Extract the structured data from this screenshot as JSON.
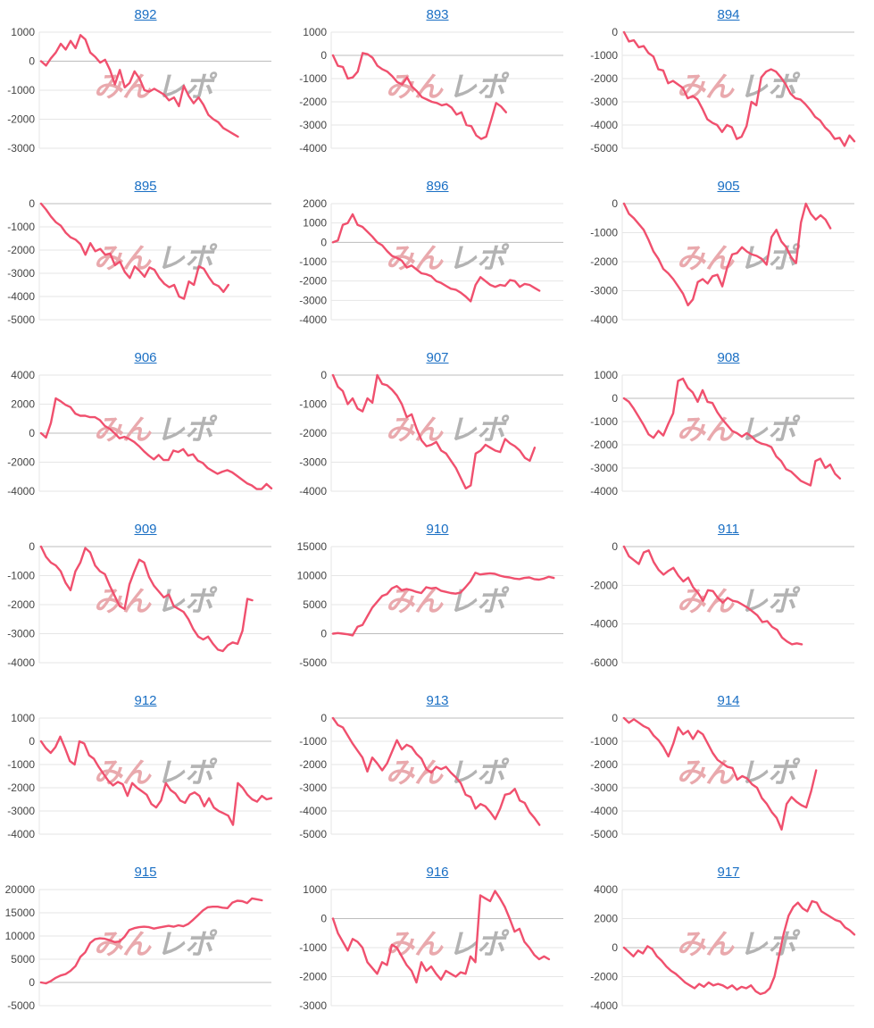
{
  "colors": {
    "line": "#f0506e",
    "grid": "#e6e6e6",
    "zero": "#bdbdbd",
    "title": "#1a6fc4",
    "watermark_a": "#e9a9ad",
    "watermark_b": "#b3b3b3"
  },
  "watermark": {
    "part_a": "みん",
    "part_b": "レポ"
  },
  "chart_data": [
    {
      "type": "line",
      "title": "892",
      "ylim": [
        -3000,
        1000
      ],
      "yticks": [
        1000,
        0,
        -1000,
        -2000,
        -3000
      ],
      "values": [
        0,
        -150,
        100,
        300,
        600,
        400,
        700,
        450,
        900,
        750,
        300,
        150,
        -50,
        50,
        -300,
        -800,
        -300,
        -900,
        -750,
        -350,
        -600,
        -1000,
        -1050,
        -950,
        -1050,
        -1150,
        -1350,
        -1250,
        -1550,
        -850,
        -1200,
        -1450,
        -1250,
        -1500,
        -1850,
        -2000,
        -2100,
        -2300,
        -2400,
        -2500,
        -2600
      ]
    },
    {
      "type": "line",
      "title": "893",
      "ylim": [
        -4000,
        1000
      ],
      "yticks": [
        1000,
        0,
        -1000,
        -2000,
        -3000,
        -4000
      ],
      "values": [
        0,
        -450,
        -500,
        -1000,
        -950,
        -700,
        100,
        50,
        -100,
        -450,
        -600,
        -700,
        -900,
        -1150,
        -1250,
        -950,
        -1350,
        -1550,
        -1800,
        -1900,
        -2000,
        -2050,
        -2150,
        -2100,
        -2250,
        -2550,
        -2450,
        -3000,
        -3050,
        -3450,
        -3600,
        -3500,
        -2800,
        -2050,
        -2200,
        -2450
      ]
    },
    {
      "type": "line",
      "title": "894",
      "ylim": [
        -5000,
        0
      ],
      "yticks": [
        0,
        -1000,
        -2000,
        -3000,
        -4000,
        -5000
      ],
      "values": [
        0,
        -400,
        -350,
        -650,
        -600,
        -900,
        -1050,
        -1600,
        -1650,
        -2200,
        -2100,
        -2250,
        -2400,
        -2850,
        -2750,
        -2900,
        -3300,
        -3750,
        -3900,
        -4000,
        -4300,
        -4000,
        -4100,
        -4600,
        -4500,
        -4050,
        -3000,
        -3150,
        -1950,
        -1700,
        -1600,
        -1700,
        -1950,
        -2250,
        -2650,
        -2850,
        -2900,
        -3100,
        -3350,
        -3650,
        -3800,
        -4100,
        -4300,
        -4600,
        -4550,
        -4900,
        -4450,
        -4700
      ]
    },
    {
      "type": "line",
      "title": "895",
      "ylim": [
        -5000,
        0
      ],
      "yticks": [
        0,
        -1000,
        -2000,
        -3000,
        -4000,
        -5000
      ],
      "values": [
        0,
        -250,
        -550,
        -800,
        -950,
        -1250,
        -1450,
        -1550,
        -1750,
        -2200,
        -1700,
        -2050,
        -1950,
        -2200,
        -2150,
        -2650,
        -2500,
        -2950,
        -3200,
        -2700,
        -2900,
        -3150,
        -2750,
        -2850,
        -3200,
        -3450,
        -3600,
        -3500,
        -4000,
        -4100,
        -3350,
        -3500,
        -2700,
        -2800,
        -3150,
        -3450,
        -3550,
        -3800,
        -3500
      ]
    },
    {
      "type": "line",
      "title": "896",
      "ylim": [
        -4000,
        2000
      ],
      "yticks": [
        2000,
        1000,
        0,
        -1000,
        -2000,
        -3000,
        -4000
      ],
      "values": [
        0,
        100,
        900,
        1000,
        1450,
        900,
        800,
        550,
        300,
        0,
        -150,
        -450,
        -700,
        -800,
        -950,
        -1300,
        -1200,
        -1400,
        -1600,
        -1650,
        -1750,
        -2000,
        -2100,
        -2250,
        -2400,
        -2450,
        -2600,
        -2800,
        -3050,
        -2200,
        -1800,
        -2000,
        -2200,
        -2300,
        -2200,
        -2250,
        -1950,
        -2000,
        -2300,
        -2150,
        -2200,
        -2350,
        -2500
      ]
    },
    {
      "type": "line",
      "title": "905",
      "ylim": [
        -4000,
        0
      ],
      "yticks": [
        0,
        -1000,
        -2000,
        -3000,
        -4000
      ],
      "values": [
        0,
        -350,
        -500,
        -700,
        -900,
        -1250,
        -1650,
        -1900,
        -2250,
        -2400,
        -2600,
        -2850,
        -3100,
        -3500,
        -3300,
        -2700,
        -2600,
        -2750,
        -2500,
        -2450,
        -2850,
        -2200,
        -1750,
        -1700,
        -1500,
        -1650,
        -1750,
        -1800,
        -1900,
        -2100,
        -1150,
        -900,
        -1300,
        -1500,
        -1850,
        -2050,
        -650,
        0,
        -350,
        -550,
        -400,
        -550,
        -850
      ]
    },
    {
      "type": "line",
      "title": "906",
      "ylim": [
        -4000,
        4000
      ],
      "yticks": [
        4000,
        2000,
        0,
        -2000,
        -4000
      ],
      "values": [
        0,
        -300,
        700,
        2400,
        2200,
        1950,
        1800,
        1350,
        1200,
        1200,
        1100,
        1100,
        900,
        500,
        300,
        0,
        -350,
        -250,
        -400,
        -600,
        -900,
        -1250,
        -1550,
        -1800,
        -1500,
        -1850,
        -1850,
        -1200,
        -1300,
        -1100,
        -1550,
        -1450,
        -1900,
        -2050,
        -2400,
        -2600,
        -2800,
        -2650,
        -2550,
        -2700,
        -2950,
        -3200,
        -3450,
        -3600,
        -3850,
        -3850,
        -3500,
        -3800
      ]
    },
    {
      "type": "line",
      "title": "907",
      "ylim": [
        -4000,
        0
      ],
      "yticks": [
        0,
        -1000,
        -2000,
        -3000,
        -4000
      ],
      "values": [
        0,
        -400,
        -550,
        -1000,
        -800,
        -1150,
        -1250,
        -800,
        -950,
        0,
        -300,
        -350,
        -500,
        -700,
        -1000,
        -1450,
        -1350,
        -1850,
        -2250,
        -2450,
        -2400,
        -2300,
        -2600,
        -2700,
        -2950,
        -3200,
        -3550,
        -3900,
        -3800,
        -2700,
        -2600,
        -2400,
        -2500,
        -2600,
        -2650,
        -2200,
        -2350,
        -2450,
        -2600,
        -2850,
        -2950,
        -2500
      ]
    },
    {
      "type": "line",
      "title": "908",
      "ylim": [
        -4000,
        1000
      ],
      "yticks": [
        1000,
        0,
        -1000,
        -2000,
        -3000,
        -4000
      ],
      "values": [
        0,
        -150,
        -450,
        -800,
        -1150,
        -1550,
        -1700,
        -1400,
        -1600,
        -1100,
        -650,
        750,
        850,
        450,
        250,
        -150,
        350,
        -150,
        -200,
        -600,
        -900,
        -1150,
        -1400,
        -1500,
        -1650,
        -1500,
        -1650,
        -1850,
        -1950,
        -2000,
        -2100,
        -2500,
        -2700,
        -3050,
        -3150,
        -3350,
        -3550,
        -3650,
        -3750,
        -2700,
        -2600,
        -3000,
        -2850,
        -3250,
        -3450
      ]
    },
    {
      "type": "line",
      "title": "909",
      "ylim": [
        -4000,
        0
      ],
      "yticks": [
        0,
        -1000,
        -2000,
        -3000,
        -4000
      ],
      "values": [
        0,
        -350,
        -550,
        -650,
        -850,
        -1250,
        -1500,
        -850,
        -550,
        -50,
        -200,
        -650,
        -850,
        -950,
        -1350,
        -1700,
        -2050,
        -2150,
        -1300,
        -850,
        -450,
        -550,
        -1050,
        -1350,
        -1550,
        -1750,
        -1650,
        -2050,
        -2150,
        -2250,
        -2500,
        -2850,
        -3100,
        -3200,
        -3100,
        -3350,
        -3550,
        -3600,
        -3400,
        -3300,
        -3350,
        -2900,
        -1800,
        -1850
      ]
    },
    {
      "type": "line",
      "title": "910",
      "ylim": [
        -5000,
        15000
      ],
      "yticks": [
        15000,
        10000,
        5000,
        0,
        -5000
      ],
      "values": [
        0,
        100,
        0,
        -100,
        -300,
        1200,
        1500,
        3000,
        4500,
        5500,
        6500,
        6800,
        7800,
        8200,
        7500,
        7700,
        7500,
        7200,
        7000,
        8000,
        7800,
        7900,
        7400,
        7200,
        7000,
        6900,
        7100,
        8000,
        9000,
        10500,
        10200,
        10300,
        10400,
        10300,
        10000,
        9800,
        9700,
        9500,
        9400,
        9600,
        9700,
        9400,
        9300,
        9500,
        9800,
        9600
      ]
    },
    {
      "type": "line",
      "title": "911",
      "ylim": [
        -6000,
        0
      ],
      "yticks": [
        0,
        -2000,
        -4000,
        -6000
      ],
      "values": [
        0,
        -500,
        -700,
        -900,
        -300,
        -200,
        -800,
        -1200,
        -1450,
        -1250,
        -1100,
        -1500,
        -1800,
        -1600,
        -2100,
        -2400,
        -2800,
        -2250,
        -2300,
        -2650,
        -2900,
        -2650,
        -2800,
        -2850,
        -3000,
        -3150,
        -3350,
        -3550,
        -3900,
        -3850,
        -4150,
        -4300,
        -4700,
        -4900,
        -5050,
        -5000,
        -5050
      ]
    },
    {
      "type": "line",
      "title": "912",
      "ylim": [
        -4000,
        1000
      ],
      "yticks": [
        1000,
        0,
        -1000,
        -2000,
        -3000,
        -4000
      ],
      "values": [
        0,
        -300,
        -500,
        -250,
        200,
        -300,
        -850,
        -1000,
        0,
        -100,
        -600,
        -750,
        -1100,
        -1400,
        -1700,
        -1900,
        -1750,
        -1850,
        -2350,
        -1800,
        -2000,
        -2150,
        -2300,
        -2700,
        -2850,
        -2550,
        -1800,
        -2100,
        -2250,
        -2550,
        -2650,
        -2300,
        -2200,
        -2350,
        -2800,
        -2450,
        -2850,
        -3000,
        -3100,
        -3200,
        -3600,
        -1800,
        -2000,
        -2300,
        -2500,
        -2600,
        -2350,
        -2500,
        -2450
      ]
    },
    {
      "type": "line",
      "title": "913",
      "ylim": [
        -5000,
        0
      ],
      "yticks": [
        0,
        -1000,
        -2000,
        -3000,
        -4000,
        -5000
      ],
      "values": [
        0,
        -300,
        -400,
        -750,
        -1100,
        -1400,
        -1700,
        -2300,
        -1700,
        -1950,
        -2250,
        -1950,
        -1450,
        -950,
        -1350,
        -1150,
        -1250,
        -1550,
        -1750,
        -2200,
        -2350,
        -2100,
        -2200,
        -2100,
        -2350,
        -2550,
        -2800,
        -3300,
        -3400,
        -3900,
        -3700,
        -3800,
        -4050,
        -4350,
        -3900,
        -3300,
        -3250,
        -3050,
        -3550,
        -3650,
        -4050,
        -4300,
        -4600
      ]
    },
    {
      "type": "line",
      "title": "914",
      "ylim": [
        -5000,
        0
      ],
      "yticks": [
        0,
        -1000,
        -2000,
        -3000,
        -4000,
        -5000
      ],
      "values": [
        0,
        -200,
        -50,
        -200,
        -350,
        -450,
        -750,
        -950,
        -1250,
        -1650,
        -1100,
        -400,
        -700,
        -550,
        -900,
        -550,
        -700,
        -1100,
        -1500,
        -1800,
        -1950,
        -2100,
        -2150,
        -2650,
        -2500,
        -2600,
        -2850,
        -3000,
        -3450,
        -3700,
        -4050,
        -4300,
        -4800,
        -3700,
        -3400,
        -3600,
        -3750,
        -3850,
        -3150,
        -2250
      ]
    },
    {
      "type": "line",
      "title": "915",
      "ylim": [
        -5000,
        20000
      ],
      "yticks": [
        20000,
        15000,
        10000,
        5000,
        0,
        -5000
      ],
      "values": [
        0,
        -200,
        300,
        1000,
        1500,
        1800,
        2500,
        3500,
        5500,
        6500,
        8500,
        9300,
        9500,
        9400,
        9100,
        8700,
        8800,
        9800,
        11300,
        11700,
        11900,
        12000,
        11900,
        11600,
        11800,
        12000,
        12200,
        12000,
        12300,
        12100,
        12600,
        13500,
        14500,
        15500,
        16200,
        16300,
        16300,
        16100,
        16000,
        17200,
        17600,
        17500,
        17100,
        18100,
        17900,
        17700
      ]
    },
    {
      "type": "line",
      "title": "916",
      "ylim": [
        -3000,
        1000
      ],
      "yticks": [
        1000,
        0,
        -1000,
        -2000,
        -3000
      ],
      "values": [
        0,
        -500,
        -800,
        -1100,
        -700,
        -800,
        -1000,
        -1500,
        -1700,
        -1900,
        -1500,
        -1600,
        -900,
        -1000,
        -1300,
        -1600,
        -1800,
        -2200,
        -1500,
        -1800,
        -1650,
        -1900,
        -2100,
        -1800,
        -1900,
        -2000,
        -1850,
        -1900,
        -1300,
        -1500,
        800,
        700,
        600,
        950,
        700,
        400,
        0,
        -450,
        -350,
        -800,
        -1000,
        -1250,
        -1400,
        -1300,
        -1400
      ]
    },
    {
      "type": "line",
      "title": "917",
      "ylim": [
        -4000,
        4000
      ],
      "yticks": [
        4000,
        2000,
        0,
        -2000,
        -4000
      ],
      "values": [
        0,
        -300,
        -600,
        -200,
        -400,
        100,
        -100,
        -600,
        -900,
        -1300,
        -1600,
        -1800,
        -2100,
        -2400,
        -2600,
        -2800,
        -2500,
        -2700,
        -2400,
        -2600,
        -2500,
        -2600,
        -2800,
        -2600,
        -2900,
        -2700,
        -2800,
        -2600,
        -3000,
        -3200,
        -3100,
        -2800,
        -2000,
        -500,
        1000,
        2200,
        2800,
        3100,
        2700,
        2500,
        3200,
        3100,
        2500,
        2300,
        2100,
        1900,
        1800,
        1400,
        1200,
        900
      ]
    }
  ]
}
